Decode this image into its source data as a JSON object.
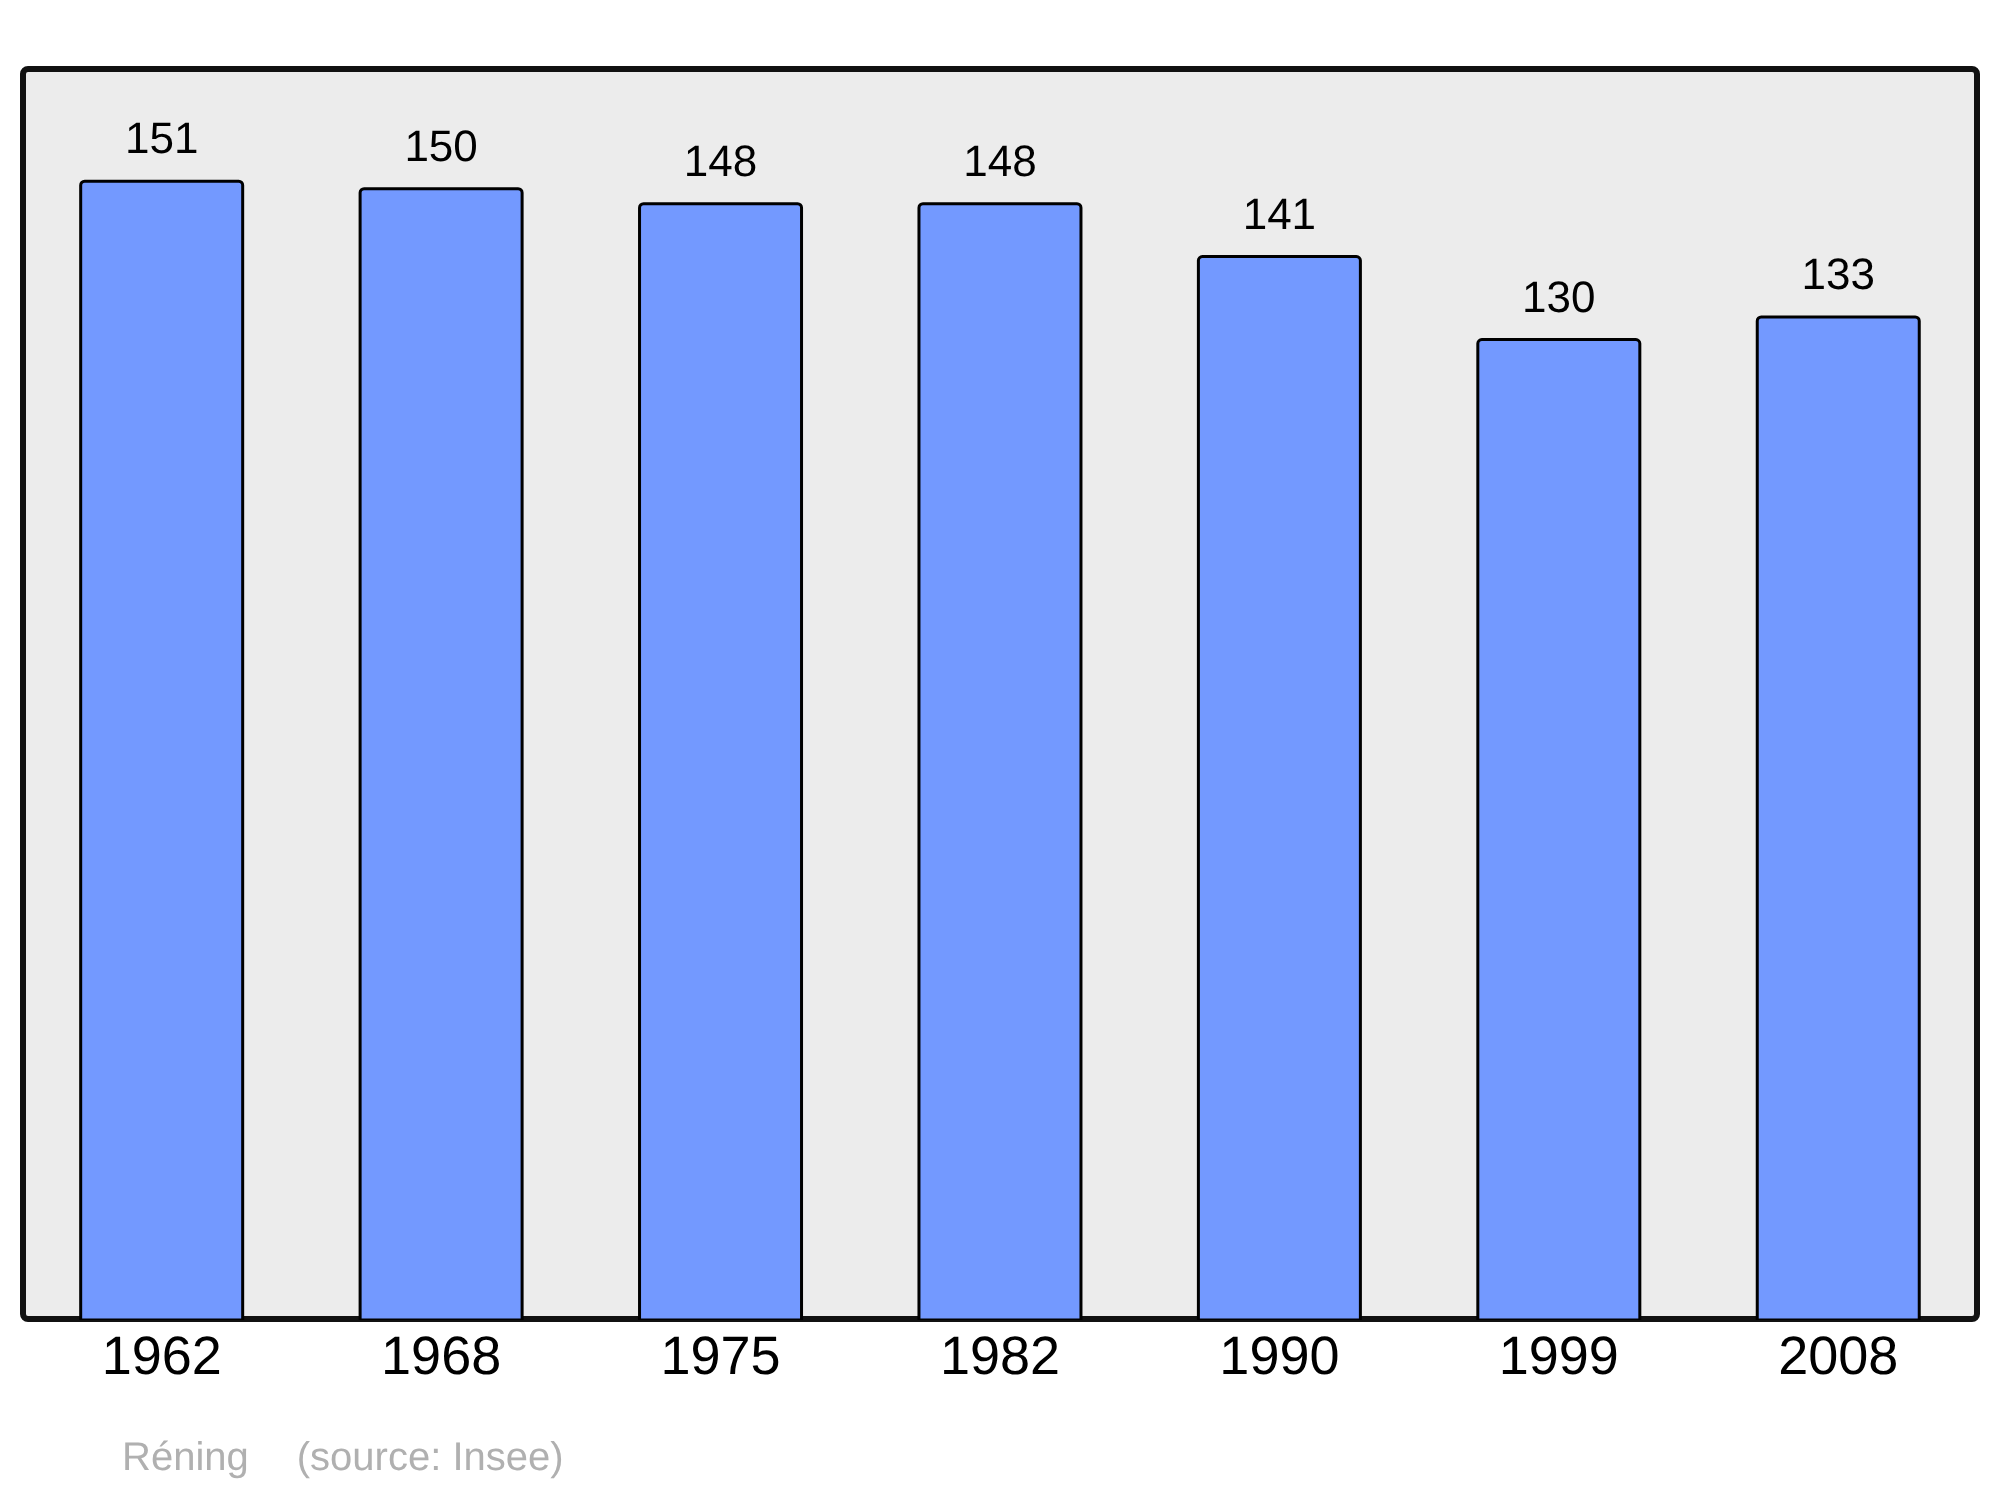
{
  "chart_data": {
    "type": "bar",
    "categories": [
      "1962",
      "1968",
      "1975",
      "1982",
      "1990",
      "1999",
      "2008"
    ],
    "values": [
      151,
      150,
      148,
      148,
      141,
      130,
      133
    ],
    "color": "#7399ff",
    "ylim": [
      0,
      166
    ],
    "data_labels": true,
    "annotations": [
      "Réning",
      "(source: Insee)"
    ]
  }
}
